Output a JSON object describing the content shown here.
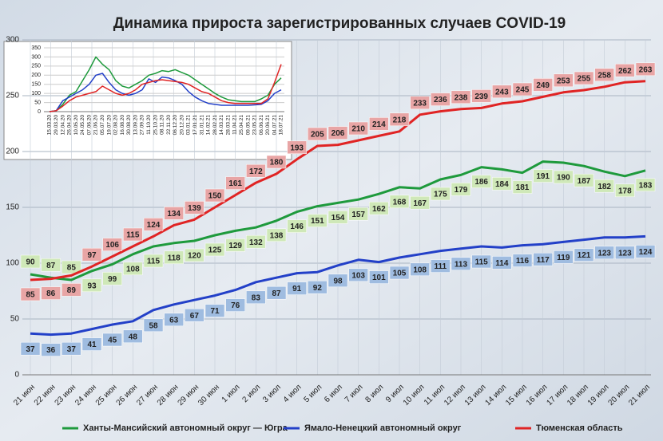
{
  "chart_data": [
    {
      "type": "line",
      "title": "Динамика прироста зарегистрированных случаев COVID-19",
      "categories": [
        "21 июн",
        "22 июн",
        "23 июн",
        "24 июн",
        "25 июн",
        "26 июн",
        "27 июн",
        "28 июн",
        "29 июн",
        "30 июн",
        "1 июл",
        "2 июл",
        "3 июл",
        "4 июл",
        "5 июл",
        "6 июл",
        "7 июл",
        "8 июл",
        "9 июл",
        "10 июл",
        "11 июл",
        "12 июл",
        "13 июл",
        "14 июл",
        "15 июл",
        "16 июл",
        "17 июл",
        "18 июл",
        "19 июл",
        "20 июл",
        "21 июл"
      ],
      "series": [
        {
          "name": "Ханты-Мансийский автономный округ — Югра",
          "color": "#1e9a3c",
          "label_color": "#cfe8b8",
          "values": [
            90,
            87,
            85,
            93,
            99,
            108,
            115,
            118,
            120,
            125,
            129,
            132,
            138,
            146,
            151,
            154,
            157,
            162,
            168,
            167,
            175,
            179,
            186,
            184,
            181,
            191,
            190,
            187,
            182,
            178,
            183
          ]
        },
        {
          "name": "Ямало-Ненецкий автономный округ",
          "color": "#2340c8",
          "label_color": "#9fbce0",
          "values": [
            37,
            36,
            37,
            41,
            45,
            48,
            58,
            63,
            67,
            71,
            76,
            83,
            87,
            91,
            92,
            98,
            103,
            101,
            105,
            108,
            111,
            113,
            115,
            114,
            116,
            117,
            119,
            121,
            123,
            123,
            124
          ]
        },
        {
          "name": "Тюменская область",
          "color": "#e02424",
          "label_color": "#e8a5a5",
          "values": [
            85,
            86,
            89,
            97,
            106,
            115,
            124,
            134,
            139,
            150,
            161,
            172,
            180,
            193,
            205,
            206,
            210,
            214,
            218,
            233,
            236,
            238,
            239,
            243,
            245,
            249,
            253,
            255,
            258,
            262,
            263
          ]
        }
      ],
      "ylim": [
        0,
        300
      ],
      "yticks": [
        0,
        50,
        100,
        150,
        200,
        250,
        300
      ],
      "grid": true,
      "legend": "bottom"
    },
    {
      "type": "line",
      "categories": [
        "15.03.20",
        "29.03.20",
        "12.04.20",
        "26.04.20",
        "10.05.20",
        "24.05.20",
        "07.06.20",
        "21.06.20",
        "05.07.20",
        "19.07.20",
        "02.08.20",
        "16.08.20",
        "30.08.20",
        "13.09.20",
        "27.09.20",
        "11.10.20",
        "25.10.20",
        "08.11.20",
        "22.11.20",
        "06.12.20",
        "20.12.20",
        "03.01.21",
        "17.01.21",
        "31.01.21",
        "14.02.21",
        "28.02.21",
        "14.03.21",
        "28.03.21",
        "11.04.21",
        "25.04.21",
        "09.05.21",
        "23.05.21",
        "06.06.21",
        "20.06.21",
        "04.07.21",
        "18.07.21"
      ],
      "series": [
        {
          "color": "#1e9a3c",
          "values": [
            0,
            5,
            40,
            90,
            110,
            170,
            230,
            300,
            260,
            230,
            170,
            140,
            130,
            150,
            170,
            200,
            210,
            225,
            220,
            230,
            215,
            200,
            175,
            150,
            125,
            100,
            80,
            65,
            60,
            55,
            55,
            55,
            70,
            90,
            150,
            185
          ]
        },
        {
          "color": "#2340c8",
          "values": [
            0,
            5,
            60,
            80,
            100,
            120,
            150,
            200,
            210,
            160,
            120,
            100,
            90,
            100,
            120,
            180,
            160,
            190,
            185,
            170,
            150,
            110,
            80,
            60,
            45,
            40,
            35,
            35,
            35,
            35,
            35,
            37,
            40,
            60,
            100,
            120
          ]
        },
        {
          "color": "#e02424",
          "values": [
            0,
            5,
            30,
            60,
            80,
            90,
            100,
            110,
            140,
            120,
            100,
            90,
            100,
            120,
            150,
            160,
            170,
            175,
            170,
            165,
            160,
            150,
            130,
            110,
            100,
            80,
            60,
            50,
            45,
            45,
            45,
            45,
            45,
            70,
            160,
            260
          ]
        }
      ],
      "ylim": [
        0,
        350
      ],
      "yticks": [
        0,
        50,
        100,
        150,
        200,
        250,
        300,
        350
      ],
      "grid": true
    }
  ]
}
